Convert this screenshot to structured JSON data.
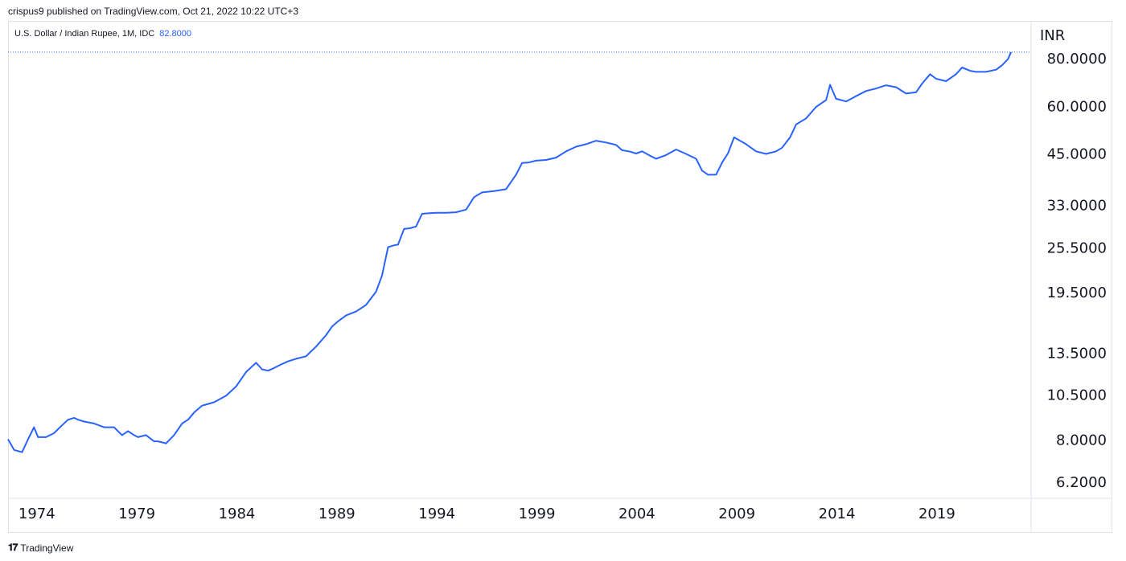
{
  "header": {
    "publisher": "crispus9 published on TradingView.com, Oct 21, 2022 10:22 UTC+3"
  },
  "legend": {
    "symbol": "U.S. Dollar / Indian Rupee, 1M, IDC",
    "last_value": "82.8000"
  },
  "footer": {
    "logo_icon": "tradingview-logo-icon",
    "brand": "TradingView"
  },
  "colors": {
    "line": "#2962ff",
    "grid_border": "#e0e3eb",
    "text": "#131722"
  },
  "chart_data": {
    "type": "line",
    "unit_label": "INR",
    "y_scale": "log",
    "ylim": [
      5.6,
      100
    ],
    "xlim": [
      1972.6,
      2023.75
    ],
    "grid": false,
    "y_ticks": [
      "80.0000",
      "60.0000",
      "45.0000",
      "33.0000",
      "25.5000",
      "19.5000",
      "13.5000",
      "10.5000",
      "8.0000",
      "6.2000"
    ],
    "x_ticks": [
      "1974",
      "1979",
      "1984",
      "1989",
      "1994",
      "1999",
      "2004",
      "2009",
      "2014",
      "2019"
    ],
    "series": [
      {
        "x": [
          1972.6,
          1972.9,
          1973.3,
          1973.6,
          1973.9,
          1974.1,
          1974.5,
          1974.9,
          1975.3,
          1975.6,
          1975.9,
          1976.1,
          1976.4,
          1976.9,
          1977.4,
          1977.9,
          1978.3,
          1978.6,
          1978.9,
          1979.1,
          1979.5,
          1979.9,
          1980.1,
          1980.5,
          1980.9,
          1981.3,
          1981.6,
          1981.9,
          1982.3,
          1982.9,
          1983.5,
          1984.0,
          1984.5,
          1985.0,
          1985.3,
          1985.6,
          1985.9,
          1986.3,
          1986.6,
          1987.0,
          1987.5,
          1988.0,
          1988.5,
          1988.8,
          1989.1,
          1989.5,
          1990.0,
          1990.5,
          1991.0,
          1991.3,
          1991.6,
          1991.9,
          1992.1,
          1992.4,
          1992.7,
          1993.0,
          1993.3,
          1993.6,
          1994.0,
          1994.5,
          1995.0,
          1995.5,
          1995.9,
          1996.3,
          1996.9,
          1997.5,
          1998.0,
          1998.3,
          1998.6,
          1999.0,
          1999.5,
          2000.0,
          2000.5,
          2001.0,
          2001.5,
          2002.0,
          2002.5,
          2003.0,
          2003.3,
          2003.7,
          2004.0,
          2004.3,
          2004.7,
          2005.0,
          2005.5,
          2006.0,
          2006.5,
          2007.0,
          2007.3,
          2007.6,
          2008.0,
          2008.3,
          2008.6,
          2008.9,
          2009.2,
          2009.5,
          2010.0,
          2010.5,
          2011.0,
          2011.3,
          2011.7,
          2012.0,
          2012.5,
          2013.0,
          2013.5,
          2013.7,
          2014.0,
          2014.5,
          2015.0,
          2015.5,
          2016.0,
          2016.5,
          2017.0,
          2017.5,
          2018.0,
          2018.3,
          2018.7,
          2019.0,
          2019.5,
          2020.0,
          2020.3,
          2020.7,
          2021.0,
          2021.5,
          2022.0,
          2022.3,
          2022.6,
          2022.75
        ],
        "y": [
          8.0,
          7.5,
          7.4,
          8.0,
          8.6,
          8.1,
          8.1,
          8.3,
          8.7,
          9.0,
          9.1,
          9.0,
          8.9,
          8.8,
          8.6,
          8.6,
          8.2,
          8.4,
          8.2,
          8.1,
          8.2,
          7.9,
          7.9,
          7.8,
          8.2,
          8.8,
          9.0,
          9.4,
          9.8,
          10.0,
          10.4,
          11.0,
          12.0,
          12.7,
          12.2,
          12.1,
          12.3,
          12.6,
          12.8,
          13.0,
          13.2,
          14.0,
          15.0,
          15.8,
          16.3,
          16.9,
          17.3,
          18.0,
          19.5,
          21.5,
          25.5,
          25.8,
          25.9,
          28.5,
          28.6,
          28.9,
          31.2,
          31.3,
          31.4,
          31.4,
          31.5,
          32.0,
          34.5,
          35.5,
          35.8,
          36.2,
          39.5,
          42.4,
          42.5,
          43.0,
          43.2,
          43.8,
          45.5,
          46.8,
          47.5,
          48.5,
          48.0,
          47.3,
          45.8,
          45.4,
          44.9,
          45.5,
          44.3,
          43.5,
          44.5,
          46.0,
          44.8,
          43.5,
          40.5,
          39.5,
          39.5,
          42.5,
          45.0,
          49.5,
          48.5,
          47.5,
          45.5,
          44.8,
          45.5,
          46.5,
          49.5,
          53.5,
          55.5,
          59.5,
          62.0,
          68.0,
          62.5,
          61.5,
          63.5,
          65.5,
          66.5,
          67.8,
          67.0,
          64.5,
          65.0,
          68.5,
          72.5,
          70.5,
          69.5,
          72.5,
          75.5,
          74.0,
          73.5,
          73.5,
          74.5,
          76.5,
          79.5,
          82.8
        ]
      }
    ]
  }
}
